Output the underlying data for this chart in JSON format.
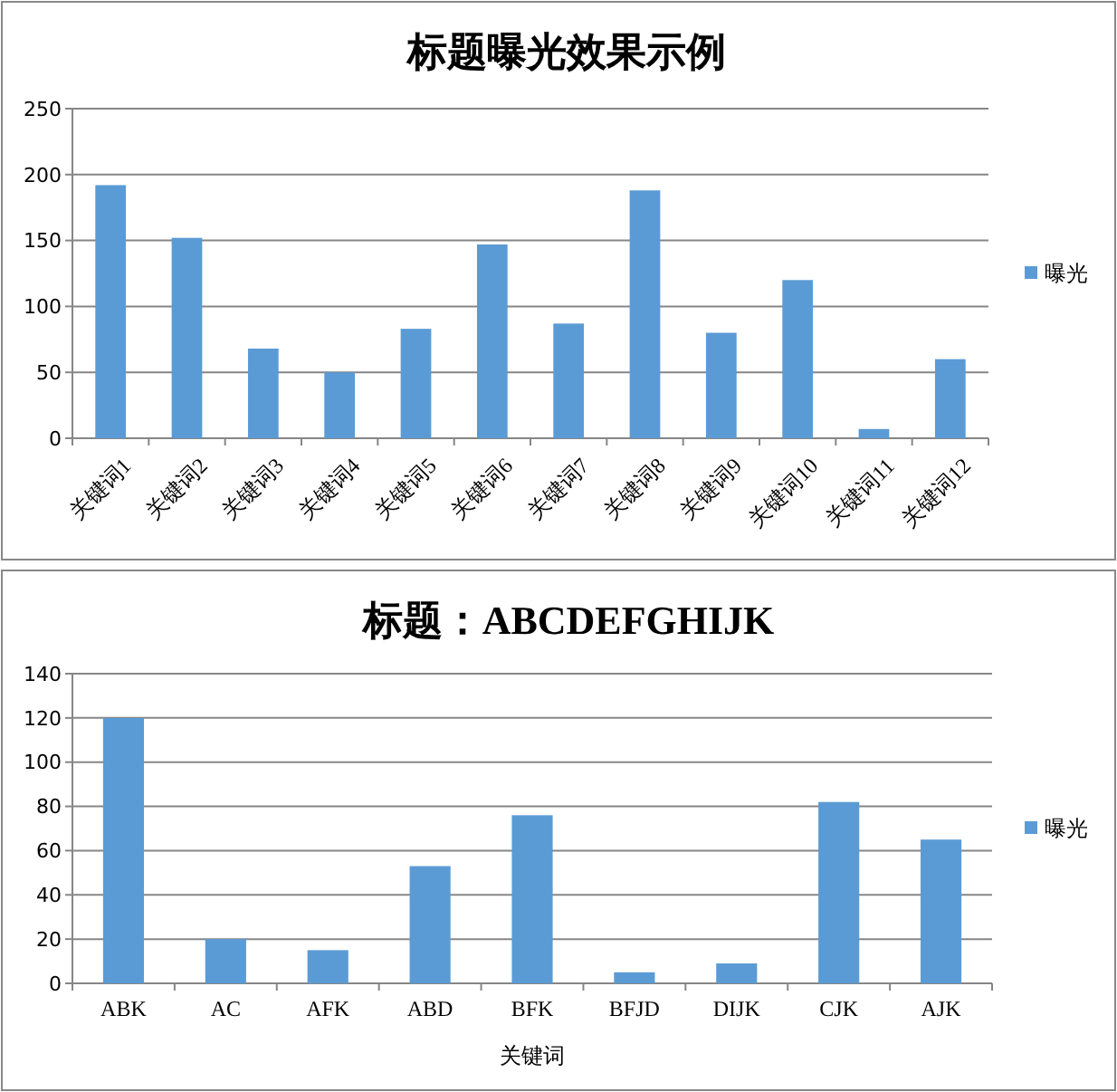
{
  "chart_data": [
    {
      "type": "bar",
      "title": "标题曝光效果示例",
      "categories": [
        "关键词1",
        "关键词2",
        "关键词3",
        "关键词4",
        "关键词5",
        "关键词6",
        "关键词7",
        "关键词8",
        "关键词9",
        "关键词10",
        "关键词11",
        "关键词12"
      ],
      "series": [
        {
          "name": "曝光",
          "color": "#5b9bd5",
          "values": [
            192,
            152,
            68,
            50,
            83,
            147,
            87,
            188,
            80,
            120,
            7,
            60
          ]
        }
      ],
      "ylim": [
        0,
        250
      ],
      "yticks": [
        0,
        50,
        100,
        150,
        200,
        250
      ],
      "grid": "y",
      "legend": "right"
    },
    {
      "type": "bar",
      "title": "标题：ABCDEFGHIJK",
      "xlabel": "关键词",
      "categories": [
        "ABK",
        "AC",
        "AFK",
        "ABD",
        "BFK",
        "BFJD",
        "DIJK",
        "CJK",
        "AJK"
      ],
      "series": [
        {
          "name": "曝光",
          "color": "#5b9bd5",
          "values": [
            120,
            20,
            15,
            53,
            76,
            5,
            9,
            82,
            65
          ]
        }
      ],
      "ylim": [
        0,
        140
      ],
      "yticks": [
        0,
        20,
        40,
        60,
        80,
        100,
        120,
        140
      ],
      "grid": "y",
      "legend": "right"
    }
  ]
}
